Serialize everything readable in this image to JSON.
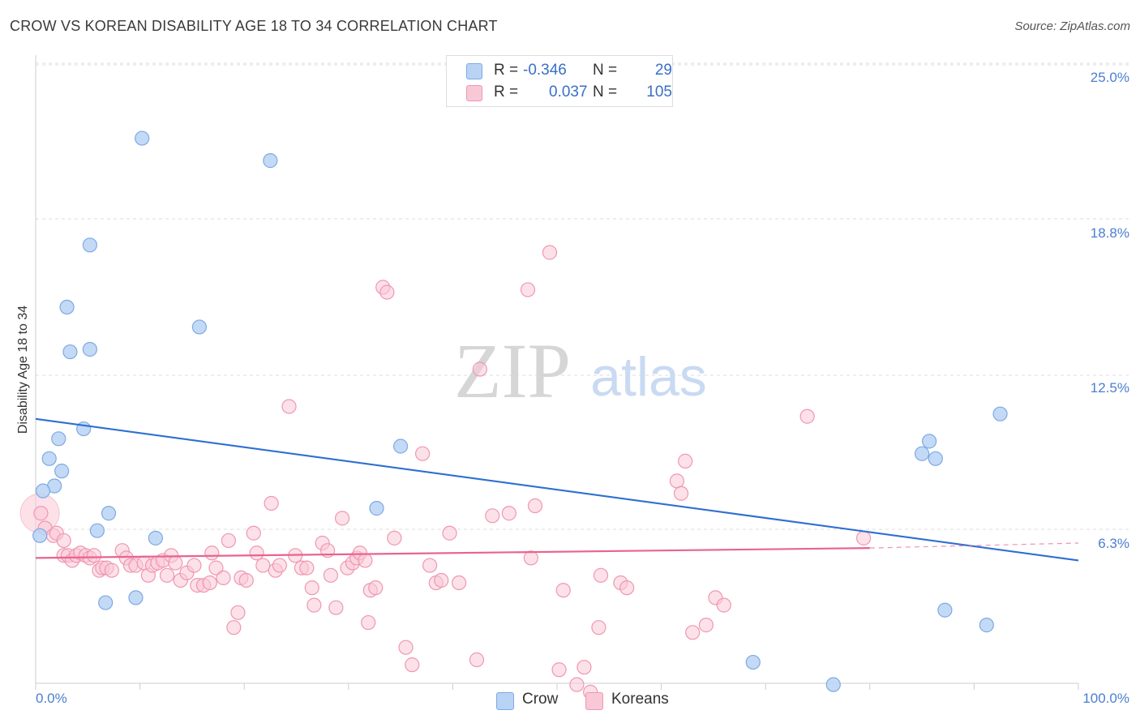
{
  "title": "CROW VS KOREAN DISABILITY AGE 18 TO 34 CORRELATION CHART",
  "source": "Source: ZipAtlas.com",
  "watermark": {
    "zip": "ZIP",
    "atlas": "atlas"
  },
  "colors": {
    "crow_fill": "#b9d3f5",
    "crow_stroke": "#7ea9e3",
    "crow_line": "#2f6fd0",
    "koreans_fill": "#f9c8d7",
    "koreans_stroke": "#ef97b3",
    "koreans_line": "#e8648e",
    "tick_text": "#4a7fd0",
    "grid": "#dddddd"
  },
  "legend": {
    "rows": [
      {
        "r_label": "R =",
        "r_value": "-0.346",
        "n_label": "N =",
        "n_value": "29"
      },
      {
        "r_label": "R =",
        "r_value": "0.037",
        "n_label": "N =",
        "n_value": "105"
      }
    ]
  },
  "bottom_legend": {
    "crow": "Crow",
    "koreans": "Koreans"
  },
  "chart_data": {
    "type": "scatter",
    "title": "CROW VS KOREAN DISABILITY AGE 18 TO 34 CORRELATION CHART",
    "xlabel": "",
    "ylabel": "Disability Age 18 to 34",
    "xlim": [
      0,
      100
    ],
    "ylim": [
      0,
      26
    ],
    "x_tick_labels": {
      "left": "0.0%",
      "right": "100.0%"
    },
    "y_ticks": [
      {
        "value": 25.0,
        "label": "25.0%"
      },
      {
        "value": 18.8,
        "label": "18.8%"
      },
      {
        "value": 12.5,
        "label": "12.5%"
      },
      {
        "value": 6.3,
        "label": "6.3%"
      }
    ],
    "series": [
      {
        "name": "Crow",
        "r": -0.346,
        "n": 29,
        "trend": {
          "x": [
            0,
            100
          ],
          "y": [
            11.3,
            5.6
          ]
        },
        "points": [
          [
            10.2,
            22.6
          ],
          [
            22.5,
            21.7
          ],
          [
            5.2,
            18.3
          ],
          [
            3.0,
            15.8
          ],
          [
            15.7,
            15.0
          ],
          [
            5.2,
            14.1
          ],
          [
            3.3,
            14.0
          ],
          [
            2.2,
            10.5
          ],
          [
            4.6,
            10.9
          ],
          [
            1.3,
            9.7
          ],
          [
            2.5,
            9.2
          ],
          [
            1.8,
            8.6
          ],
          [
            0.7,
            8.4
          ],
          [
            7.0,
            7.5
          ],
          [
            5.9,
            6.8
          ],
          [
            11.5,
            6.5
          ],
          [
            0.4,
            6.6
          ],
          [
            6.7,
            3.9
          ],
          [
            9.6,
            4.1
          ],
          [
            35.0,
            10.2
          ],
          [
            32.7,
            7.7
          ],
          [
            92.5,
            11.5
          ],
          [
            85.7,
            10.4
          ],
          [
            86.3,
            9.7
          ],
          [
            85.0,
            9.9
          ],
          [
            87.2,
            3.6
          ],
          [
            91.2,
            3.0
          ],
          [
            68.8,
            1.5
          ],
          [
            76.5,
            0.6
          ]
        ]
      },
      {
        "name": "Koreans",
        "r": 0.037,
        "n": 105,
        "trend": {
          "x": [
            0,
            80
          ],
          "y": [
            5.7,
            6.1
          ]
        },
        "trend_dashed": {
          "x": [
            80,
            100
          ],
          "y": [
            6.1,
            6.3
          ]
        },
        "points": [
          [
            0.5,
            7.5
          ],
          [
            0.9,
            6.9
          ],
          [
            1.7,
            6.6
          ],
          [
            2.0,
            6.7
          ],
          [
            2.7,
            6.4
          ],
          [
            2.7,
            5.8
          ],
          [
            3.1,
            5.8
          ],
          [
            3.5,
            5.6
          ],
          [
            3.9,
            5.8
          ],
          [
            4.3,
            5.9
          ],
          [
            4.8,
            5.8
          ],
          [
            5.2,
            5.7
          ],
          [
            5.6,
            5.8
          ],
          [
            6.1,
            5.2
          ],
          [
            6.4,
            5.3
          ],
          [
            6.8,
            5.3
          ],
          [
            7.3,
            5.2
          ],
          [
            8.3,
            6.0
          ],
          [
            8.7,
            5.7
          ],
          [
            9.1,
            5.4
          ],
          [
            9.6,
            5.4
          ],
          [
            10.4,
            5.5
          ],
          [
            10.8,
            5.0
          ],
          [
            11.2,
            5.4
          ],
          [
            11.7,
            5.5
          ],
          [
            12.2,
            5.6
          ],
          [
            12.6,
            5.0
          ],
          [
            13.0,
            5.8
          ],
          [
            13.4,
            5.5
          ],
          [
            13.9,
            4.8
          ],
          [
            14.5,
            5.1
          ],
          [
            15.2,
            5.4
          ],
          [
            15.5,
            4.6
          ],
          [
            16.1,
            4.6
          ],
          [
            16.7,
            4.7
          ],
          [
            16.9,
            5.9
          ],
          [
            17.3,
            5.3
          ],
          [
            18.0,
            4.9
          ],
          [
            18.5,
            6.4
          ],
          [
            19.0,
            2.9
          ],
          [
            19.4,
            3.5
          ],
          [
            19.7,
            4.9
          ],
          [
            20.2,
            4.8
          ],
          [
            20.9,
            6.7
          ],
          [
            21.2,
            5.9
          ],
          [
            21.8,
            5.4
          ],
          [
            22.6,
            7.9
          ],
          [
            23.0,
            5.2
          ],
          [
            23.4,
            5.4
          ],
          [
            24.3,
            11.8
          ],
          [
            24.9,
            5.8
          ],
          [
            25.5,
            5.3
          ],
          [
            26.0,
            5.3
          ],
          [
            26.5,
            4.5
          ],
          [
            26.7,
            3.8
          ],
          [
            27.5,
            6.3
          ],
          [
            28.0,
            6.0
          ],
          [
            28.3,
            5.0
          ],
          [
            28.8,
            3.7
          ],
          [
            29.4,
            7.3
          ],
          [
            29.9,
            5.3
          ],
          [
            30.4,
            5.5
          ],
          [
            30.8,
            5.7
          ],
          [
            31.1,
            5.9
          ],
          [
            31.6,
            5.6
          ],
          [
            31.9,
            3.1
          ],
          [
            32.1,
            4.4
          ],
          [
            32.6,
            4.5
          ],
          [
            33.3,
            16.6
          ],
          [
            33.7,
            16.4
          ],
          [
            34.4,
            6.5
          ],
          [
            35.5,
            2.1
          ],
          [
            36.1,
            1.4
          ],
          [
            37.1,
            9.9
          ],
          [
            37.8,
            5.4
          ],
          [
            38.4,
            4.7
          ],
          [
            38.9,
            4.8
          ],
          [
            39.7,
            6.7
          ],
          [
            40.6,
            4.7
          ],
          [
            42.3,
            1.6
          ],
          [
            42.6,
            13.3
          ],
          [
            43.8,
            7.4
          ],
          [
            45.4,
            7.5
          ],
          [
            47.2,
            16.5
          ],
          [
            47.5,
            5.7
          ],
          [
            47.9,
            7.8
          ],
          [
            49.3,
            18.0
          ],
          [
            50.2,
            1.2
          ],
          [
            50.6,
            4.4
          ],
          [
            51.9,
            0.6
          ],
          [
            52.6,
            1.3
          ],
          [
            53.2,
            0.3
          ],
          [
            54.0,
            2.9
          ],
          [
            54.2,
            5.0
          ],
          [
            56.1,
            4.7
          ],
          [
            56.7,
            4.5
          ],
          [
            61.5,
            8.8
          ],
          [
            61.9,
            8.3
          ],
          [
            62.3,
            9.6
          ],
          [
            63.0,
            2.7
          ],
          [
            64.3,
            3.0
          ],
          [
            65.2,
            4.1
          ],
          [
            66.0,
            3.8
          ],
          [
            74.0,
            11.4
          ],
          [
            79.4,
            6.5
          ]
        ]
      }
    ]
  }
}
